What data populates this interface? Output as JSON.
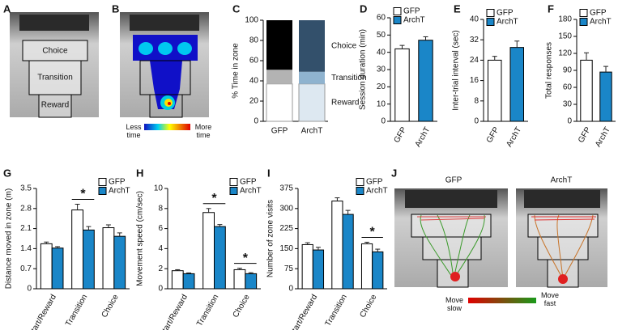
{
  "figure": {
    "panels": [
      "A",
      "B",
      "C",
      "D",
      "E",
      "F",
      "G",
      "H",
      "I",
      "J"
    ],
    "zones": [
      "Choice",
      "Transition",
      "Reward"
    ],
    "heatmap_scale": [
      "Less time",
      "More time"
    ],
    "tracks": {
      "titles": [
        "GFP",
        "ArchT"
      ],
      "scale": [
        "Move slow",
        "Move fast"
      ]
    }
  },
  "chart_data": [
    {
      "type": "stacked_bar",
      "ylabel": "% Time in zone",
      "categories": [
        "GFP",
        "ArchT"
      ],
      "ylim": [
        0,
        100
      ],
      "yticks": [
        0,
        20,
        40,
        60,
        80,
        100
      ],
      "series": [
        {
          "name": "Reward",
          "colors": [
            "#ffffff",
            "#dde8f1"
          ],
          "values": [
            37,
            37
          ]
        },
        {
          "name": "Transition",
          "colors": [
            "#b3b3b3",
            "#8fb3cf"
          ],
          "values": [
            14,
            12
          ]
        },
        {
          "name": "Choice",
          "colors": [
            "#000000",
            "#33506b"
          ],
          "values": [
            49,
            51
          ]
        }
      ]
    },
    {
      "type": "bar",
      "ylabel": "Session duration (min)",
      "categories": [
        "GFP",
        "ArchT"
      ],
      "colors": [
        "#ffffff",
        "#1a86c8"
      ],
      "values": [
        42,
        47
      ],
      "errors": [
        2,
        2
      ],
      "ylim": [
        0,
        60
      ],
      "yticks": [
        0,
        10,
        20,
        30,
        40,
        50,
        60
      ],
      "legend": true
    },
    {
      "type": "bar",
      "ylabel": "Inter-trial interval (sec)",
      "categories": [
        "GFP",
        "ArchT"
      ],
      "colors": [
        "#ffffff",
        "#1a86c8"
      ],
      "values": [
        24,
        29
      ],
      "errors": [
        1.5,
        2.5
      ],
      "ylim": [
        0,
        40
      ],
      "yticks": [
        0,
        8,
        16,
        24,
        32,
        40
      ],
      "legend": true
    },
    {
      "type": "bar",
      "ylabel": "Total responses",
      "categories": [
        "GFP",
        "ArchT"
      ],
      "colors": [
        "#ffffff",
        "#1a86c8"
      ],
      "values": [
        108,
        87
      ],
      "errors": [
        13,
        10
      ],
      "ylim": [
        0,
        180
      ],
      "yticks": [
        0,
        30,
        60,
        90,
        120,
        150,
        180
      ],
      "legend": true
    },
    {
      "type": "grouped_bar",
      "ylabel": "Distance moved in zone (m)",
      "categories": [
        "Start/Reward",
        "Transition",
        "Choice"
      ],
      "series": [
        {
          "name": "GFP",
          "color": "#ffffff",
          "values": [
            1.57,
            2.75,
            2.13
          ],
          "errors": [
            0.06,
            0.2,
            0.1
          ]
        },
        {
          "name": "ArchT",
          "color": "#1a86c8",
          "values": [
            1.42,
            2.05,
            1.83
          ],
          "errors": [
            0.05,
            0.12,
            0.12
          ]
        }
      ],
      "ylim": [
        0,
        3.5
      ],
      "yticks": [
        0,
        0.7,
        1.4,
        2.1,
        2.8,
        3.5
      ],
      "annotations": [
        {
          "text": "*",
          "category": "Transition"
        }
      ]
    },
    {
      "type": "grouped_bar",
      "ylabel": "Movement speed (cm/sec)",
      "categories": [
        "Start/Reward",
        "Transition",
        "Choice"
      ],
      "series": [
        {
          "name": "GFP",
          "color": "#ffffff",
          "values": [
            1.8,
            7.6,
            1.9
          ],
          "errors": [
            0.1,
            0.4,
            0.15
          ]
        },
        {
          "name": "ArchT",
          "color": "#1a86c8",
          "values": [
            1.5,
            6.2,
            1.5
          ],
          "errors": [
            0.08,
            0.2,
            0.1
          ]
        }
      ],
      "ylim": [
        0,
        10
      ],
      "yticks": [
        0,
        2,
        4,
        6,
        8,
        10
      ],
      "annotations": [
        {
          "text": "*",
          "category": "Transition"
        },
        {
          "text": "*",
          "category": "Choice"
        }
      ]
    },
    {
      "type": "grouped_bar",
      "ylabel": "Number of zone visits",
      "categories": [
        "Start/Reward",
        "Transition",
        "Choice"
      ],
      "series": [
        {
          "name": "GFP",
          "color": "#ffffff",
          "values": [
            165,
            328,
            168
          ],
          "errors": [
            7,
            12,
            6
          ]
        },
        {
          "name": "ArchT",
          "color": "#1a86c8",
          "values": [
            145,
            278,
            138
          ],
          "errors": [
            10,
            15,
            10
          ]
        }
      ],
      "ylim": [
        0,
        375
      ],
      "yticks": [
        0,
        75,
        150,
        225,
        300,
        375
      ],
      "annotations": [
        {
          "text": "*",
          "category": "Choice"
        }
      ]
    }
  ]
}
